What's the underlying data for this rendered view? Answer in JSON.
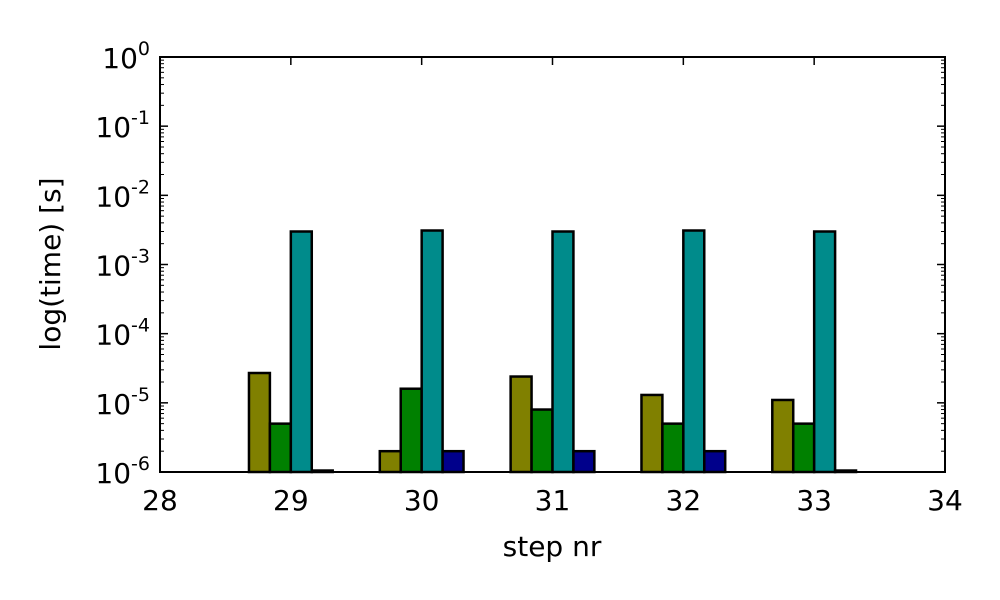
{
  "chart_data": {
    "type": "bar",
    "title": "",
    "xlabel": "step nr",
    "ylabel": "log(time) [s]",
    "xlim": [
      28,
      34
    ],
    "ylim": [
      1e-06,
      1
    ],
    "yscale": "log",
    "x_ticks": [
      "28",
      "29",
      "30",
      "31",
      "32",
      "33",
      "34"
    ],
    "y_ticks": [
      {
        "base": "10",
        "exp": "0"
      },
      {
        "base": "10",
        "exp": "-1"
      },
      {
        "base": "10",
        "exp": "-2"
      },
      {
        "base": "10",
        "exp": "-3"
      },
      {
        "base": "10",
        "exp": "-4"
      },
      {
        "base": "10",
        "exp": "-5"
      },
      {
        "base": "10",
        "exp": "-6"
      }
    ],
    "grid": false,
    "legend": "none",
    "categories": [
      29,
      30,
      31,
      32,
      33
    ],
    "series": [
      {
        "color": "#808000",
        "values": [
          2.7e-05,
          2e-06,
          2.4e-05,
          1.3e-05,
          1.1e-05
        ]
      },
      {
        "color": "#008000",
        "values": [
          5e-06,
          1.6e-05,
          8e-06,
          5e-06,
          5e-06
        ]
      },
      {
        "color": "#008b8b",
        "values": [
          0.003,
          0.0031,
          0.003,
          0.0031,
          0.003
        ]
      },
      {
        "color": "#00008b",
        "values": [
          1.05e-06,
          2e-06,
          2e-06,
          2e-06,
          1.05e-06
        ]
      }
    ]
  }
}
